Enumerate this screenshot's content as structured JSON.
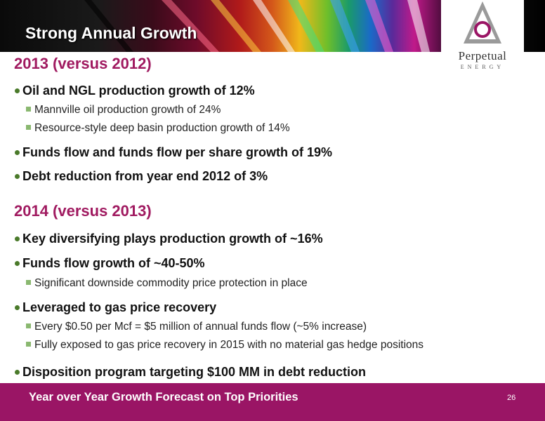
{
  "slide": {
    "title": "Strong Annual Growth",
    "page_number": "26",
    "footer": "Year over Year Growth Forecast  on Top Priorities"
  },
  "logo": {
    "name": "Perpetual",
    "sub": "ENERGY"
  },
  "sections": [
    {
      "heading": "2013 (versus 2012)",
      "bullets": [
        {
          "text": "Oil and NGL production growth of 12%",
          "sub": [
            "Mannville oil production growth of 24%",
            "Resource-style deep basin production growth of  14%"
          ]
        },
        {
          "text": "Funds flow and funds flow per share growth of 19%",
          "sub": []
        },
        {
          "text": "Debt reduction from year end 2012 of 3%",
          "sub": []
        }
      ]
    },
    {
      "heading": "2014 (versus 2013)",
      "bullets": [
        {
          "text": "Key diversifying plays production growth of  ~16%",
          "sub": []
        },
        {
          "text": "Funds flow growth of ~40-50%",
          "sub": [
            "Significant downside commodity price protection in place"
          ]
        },
        {
          "text": "Leveraged to gas price recovery",
          "sub": [
            "Every $0.50 per Mcf = $5 million of annual funds flow (~5% increase)",
            "Fully exposed to gas price recovery in 2015 with no material gas hedge positions"
          ]
        },
        {
          "text": "Disposition program targeting $100 MM in debt reduction",
          "sub": []
        }
      ]
    }
  ],
  "colors": {
    "accent": "#a01a60",
    "footer": "#9a1565",
    "bullet": "#4a7a2a",
    "sub_bullet": "#8ab870"
  }
}
